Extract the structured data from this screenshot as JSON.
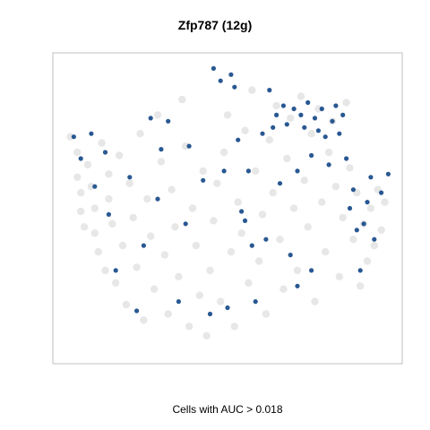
{
  "chart_data": {
    "type": "scatter",
    "title": "Zfp787 (12g)",
    "xlabel": "Cells with AUC > 0.018",
    "ylabel": "",
    "grid": false,
    "legend": "none",
    "colors": {
      "background_cells": "#d3d3d3",
      "positive_cells": "#1d4f8c",
      "frame": "#bfbfbf"
    },
    "series": [
      {
        "values": [
          {
            "x": 0.05,
            "y": 0.73
          },
          {
            "x": 0.07,
            "y": 0.68
          },
          {
            "x": 0.07,
            "y": 0.6
          },
          {
            "x": 0.08,
            "y": 0.55
          },
          {
            "x": 0.08,
            "y": 0.49
          },
          {
            "x": 0.09,
            "y": 0.44
          },
          {
            "x": 0.1,
            "y": 0.64
          },
          {
            "x": 0.11,
            "y": 0.57
          },
          {
            "x": 0.12,
            "y": 0.5
          },
          {
            "x": 0.12,
            "y": 0.42
          },
          {
            "x": 0.13,
            "y": 0.36
          },
          {
            "x": 0.14,
            "y": 0.71
          },
          {
            "x": 0.15,
            "y": 0.3
          },
          {
            "x": 0.16,
            "y": 0.61
          },
          {
            "x": 0.16,
            "y": 0.53
          },
          {
            "x": 0.17,
            "y": 0.45
          },
          {
            "x": 0.18,
            "y": 0.26
          },
          {
            "x": 0.19,
            "y": 0.67
          },
          {
            "x": 0.2,
            "y": 0.38
          },
          {
            "x": 0.21,
            "y": 0.19
          },
          {
            "x": 0.22,
            "y": 0.58
          },
          {
            "x": 0.23,
            "y": 0.47
          },
          {
            "x": 0.24,
            "y": 0.31
          },
          {
            "x": 0.25,
            "y": 0.74
          },
          {
            "x": 0.26,
            "y": 0.14
          },
          {
            "x": 0.27,
            "y": 0.53
          },
          {
            "x": 0.28,
            "y": 0.41
          },
          {
            "x": 0.29,
            "y": 0.24
          },
          {
            "x": 0.3,
            "y": 0.8
          },
          {
            "x": 0.31,
            "y": 0.65
          },
          {
            "x": 0.32,
            "y": 0.35
          },
          {
            "x": 0.33,
            "y": 0.16
          },
          {
            "x": 0.34,
            "y": 0.56
          },
          {
            "x": 0.35,
            "y": 0.44
          },
          {
            "x": 0.36,
            "y": 0.28
          },
          {
            "x": 0.37,
            "y": 0.85
          },
          {
            "x": 0.38,
            "y": 0.7
          },
          {
            "x": 0.39,
            "y": 0.12
          },
          {
            "x": 0.4,
            "y": 0.5
          },
          {
            "x": 0.41,
            "y": 0.38
          },
          {
            "x": 0.42,
            "y": 0.22
          },
          {
            "x": 0.43,
            "y": 0.62
          },
          {
            "x": 0.44,
            "y": 0.09
          },
          {
            "x": 0.45,
            "y": 0.3
          },
          {
            "x": 0.46,
            "y": 0.46
          },
          {
            "x": 0.47,
            "y": 0.58
          },
          {
            "x": 0.48,
            "y": 0.2
          },
          {
            "x": 0.49,
            "y": 0.68
          },
          {
            "x": 0.5,
            "y": 0.8
          },
          {
            "x": 0.51,
            "y": 0.36
          },
          {
            "x": 0.52,
            "y": 0.12
          },
          {
            "x": 0.53,
            "y": 0.52
          },
          {
            "x": 0.54,
            "y": 0.42
          },
          {
            "x": 0.55,
            "y": 0.75
          },
          {
            "x": 0.56,
            "y": 0.26
          },
          {
            "x": 0.57,
            "y": 0.88
          },
          {
            "x": 0.58,
            "y": 0.62
          },
          {
            "x": 0.59,
            "y": 0.33
          },
          {
            "x": 0.6,
            "y": 0.48
          },
          {
            "x": 0.61,
            "y": 0.16
          },
          {
            "x": 0.62,
            "y": 0.72
          },
          {
            "x": 0.63,
            "y": 0.55
          },
          {
            "x": 0.64,
            "y": 0.83
          },
          {
            "x": 0.65,
            "y": 0.4
          },
          {
            "x": 0.66,
            "y": 0.24
          },
          {
            "x": 0.67,
            "y": 0.66
          },
          {
            "x": 0.68,
            "y": 0.79
          },
          {
            "x": 0.69,
            "y": 0.5
          },
          {
            "x": 0.7,
            "y": 0.3
          },
          {
            "x": 0.71,
            "y": 0.86
          },
          {
            "x": 0.72,
            "y": 0.59
          },
          {
            "x": 0.73,
            "y": 0.44
          },
          {
            "x": 0.74,
            "y": 0.74
          },
          {
            "x": 0.75,
            "y": 0.2
          },
          {
            "x": 0.76,
            "y": 0.82
          },
          {
            "x": 0.77,
            "y": 0.52
          },
          {
            "x": 0.78,
            "y": 0.36
          },
          {
            "x": 0.79,
            "y": 0.68
          },
          {
            "x": 0.8,
            "y": 0.78
          },
          {
            "x": 0.81,
            "y": 0.57
          },
          {
            "x": 0.82,
            "y": 0.28
          },
          {
            "x": 0.83,
            "y": 0.47
          },
          {
            "x": 0.84,
            "y": 0.84
          },
          {
            "x": 0.85,
            "y": 0.63
          },
          {
            "x": 0.86,
            "y": 0.4
          },
          {
            "x": 0.87,
            "y": 0.55
          },
          {
            "x": 0.88,
            "y": 0.25
          },
          {
            "x": 0.89,
            "y": 0.45
          },
          {
            "x": 0.9,
            "y": 0.33
          },
          {
            "x": 0.91,
            "y": 0.5
          },
          {
            "x": 0.92,
            "y": 0.38
          },
          {
            "x": 0.93,
            "y": 0.56
          },
          {
            "x": 0.94,
            "y": 0.43
          },
          {
            "x": 0.95,
            "y": 0.52
          }
        ]
      },
      {
        "values": [
          {
            "x": 0.06,
            "y": 0.73
          },
          {
            "x": 0.08,
            "y": 0.66
          },
          {
            "x": 0.11,
            "y": 0.74
          },
          {
            "x": 0.12,
            "y": 0.57
          },
          {
            "x": 0.15,
            "y": 0.68
          },
          {
            "x": 0.16,
            "y": 0.48
          },
          {
            "x": 0.18,
            "y": 0.3
          },
          {
            "x": 0.22,
            "y": 0.6
          },
          {
            "x": 0.24,
            "y": 0.17
          },
          {
            "x": 0.26,
            "y": 0.38
          },
          {
            "x": 0.28,
            "y": 0.79
          },
          {
            "x": 0.3,
            "y": 0.53
          },
          {
            "x": 0.31,
            "y": 0.69
          },
          {
            "x": 0.33,
            "y": 0.78
          },
          {
            "x": 0.36,
            "y": 0.2
          },
          {
            "x": 0.38,
            "y": 0.45
          },
          {
            "x": 0.39,
            "y": 0.7
          },
          {
            "x": 0.43,
            "y": 0.59
          },
          {
            "x": 0.45,
            "y": 0.16
          },
          {
            "x": 0.46,
            "y": 0.95
          },
          {
            "x": 0.48,
            "y": 0.91
          },
          {
            "x": 0.49,
            "y": 0.62
          },
          {
            "x": 0.5,
            "y": 0.18
          },
          {
            "x": 0.51,
            "y": 0.93
          },
          {
            "x": 0.52,
            "y": 0.89
          },
          {
            "x": 0.53,
            "y": 0.72
          },
          {
            "x": 0.54,
            "y": 0.49
          },
          {
            "x": 0.55,
            "y": 0.46
          },
          {
            "x": 0.56,
            "y": 0.62
          },
          {
            "x": 0.57,
            "y": 0.38
          },
          {
            "x": 0.58,
            "y": 0.2
          },
          {
            "x": 0.6,
            "y": 0.74
          },
          {
            "x": 0.61,
            "y": 0.4
          },
          {
            "x": 0.62,
            "y": 0.88
          },
          {
            "x": 0.63,
            "y": 0.76
          },
          {
            "x": 0.64,
            "y": 0.8
          },
          {
            "x": 0.65,
            "y": 0.58
          },
          {
            "x": 0.66,
            "y": 0.83
          },
          {
            "x": 0.67,
            "y": 0.77
          },
          {
            "x": 0.68,
            "y": 0.35
          },
          {
            "x": 0.69,
            "y": 0.82
          },
          {
            "x": 0.7,
            "y": 0.62
          },
          {
            "x": 0.71,
            "y": 0.8
          },
          {
            "x": 0.72,
            "y": 0.76
          },
          {
            "x": 0.73,
            "y": 0.84
          },
          {
            "x": 0.74,
            "y": 0.67
          },
          {
            "x": 0.75,
            "y": 0.79
          },
          {
            "x": 0.76,
            "y": 0.75
          },
          {
            "x": 0.77,
            "y": 0.82
          },
          {
            "x": 0.78,
            "y": 0.73
          },
          {
            "x": 0.79,
            "y": 0.64
          },
          {
            "x": 0.8,
            "y": 0.78
          },
          {
            "x": 0.81,
            "y": 0.83
          },
          {
            "x": 0.82,
            "y": 0.74
          },
          {
            "x": 0.83,
            "y": 0.8
          },
          {
            "x": 0.84,
            "y": 0.66
          },
          {
            "x": 0.85,
            "y": 0.5
          },
          {
            "x": 0.86,
            "y": 0.56
          },
          {
            "x": 0.87,
            "y": 0.43
          },
          {
            "x": 0.88,
            "y": 0.3
          },
          {
            "x": 0.89,
            "y": 0.45
          },
          {
            "x": 0.9,
            "y": 0.52
          },
          {
            "x": 0.91,
            "y": 0.6
          },
          {
            "x": 0.92,
            "y": 0.4
          },
          {
            "x": 0.94,
            "y": 0.55
          },
          {
            "x": 0.96,
            "y": 0.61
          },
          {
            "x": 0.74,
            "y": 0.3
          },
          {
            "x": 0.7,
            "y": 0.25
          }
        ]
      }
    ]
  }
}
